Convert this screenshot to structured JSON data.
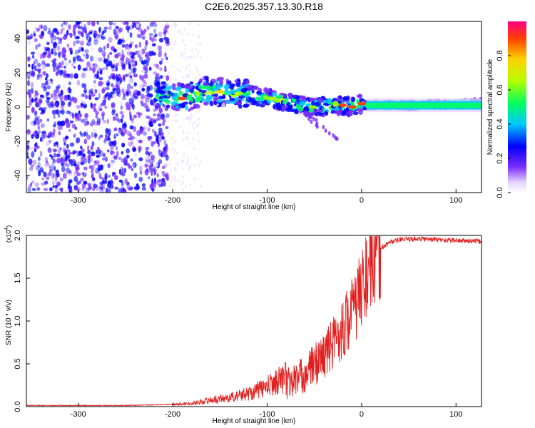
{
  "title": "C2E6.2025.357.13.30.R18",
  "colors": {
    "trace": "#e02020",
    "axis": "#000000"
  },
  "chart_data": [
    {
      "type": "heatmap",
      "xlabel": "Height of straight line (km)",
      "ylabel": "Frequency (Hz)",
      "xlim": [
        -355,
        127
      ],
      "ylim": [
        -50,
        50
      ],
      "xticks": [
        -300,
        -200,
        -100,
        0,
        100
      ],
      "xtick_labels": [
        "-300",
        "-200",
        "-100",
        "0",
        "100"
      ],
      "yticks": [
        -40,
        -20,
        0,
        20,
        40
      ],
      "ytick_labels": [
        "-40",
        "-20",
        "0",
        "20",
        "40"
      ],
      "colorbar": {
        "label": "Normalized spectral amplitude",
        "range": [
          0,
          1
        ],
        "ticks": [
          0.0,
          0.2,
          0.4,
          0.6,
          0.8
        ],
        "tick_labels": [
          "0.0",
          "0.2",
          "0.4",
          "0.6",
          "0.8"
        ]
      },
      "ridge": {
        "x": [
          -215,
          -200,
          -185,
          -170,
          -155,
          -140,
          -125,
          -110,
          -95,
          -80,
          -65,
          -50,
          -35,
          -20,
          -10,
          0,
          5,
          20,
          60,
          100,
          127
        ],
        "y": [
          7,
          6,
          5,
          9,
          9,
          8,
          8,
          6,
          5,
          3,
          1,
          0,
          1,
          1,
          0,
          2,
          1,
          1,
          1,
          2,
          2
        ]
      }
    },
    {
      "type": "line",
      "xlabel": "Height of straight line (km)",
      "ylabel": "SNR (10 * v/v)",
      "scale_label": "(x10",
      "scale_exp": "4",
      "xlim": [
        -355,
        127
      ],
      "ylim": [
        0,
        2.0
      ],
      "xticks": [
        -300,
        -200,
        -100,
        0,
        100
      ],
      "xtick_labels": [
        "-300",
        "-200",
        "-100",
        "0",
        "100"
      ],
      "yticks": [
        0.0,
        0.5,
        1.0,
        1.5,
        2.0
      ],
      "ytick_labels": [
        "0.0",
        "0.5",
        "1.0",
        "1.5",
        "2.0"
      ],
      "series": [
        {
          "name": "SNR",
          "x": [
            -355,
            -300,
            -250,
            -200,
            -180,
            -160,
            -140,
            -120,
            -100,
            -80,
            -60,
            -50,
            -40,
            -30,
            -20,
            -15,
            -10,
            -5,
            0,
            10,
            20,
            30,
            40,
            60,
            80,
            100,
            127
          ],
          "y": [
            0.01,
            0.01,
            0.01,
            0.02,
            0.03,
            0.06,
            0.08,
            0.12,
            0.18,
            0.28,
            0.4,
            0.52,
            0.62,
            0.78,
            0.95,
            1.05,
            1.15,
            1.25,
            1.45,
            1.7,
            1.85,
            1.92,
            1.95,
            1.96,
            1.95,
            1.94,
            1.93
          ]
        }
      ]
    }
  ]
}
